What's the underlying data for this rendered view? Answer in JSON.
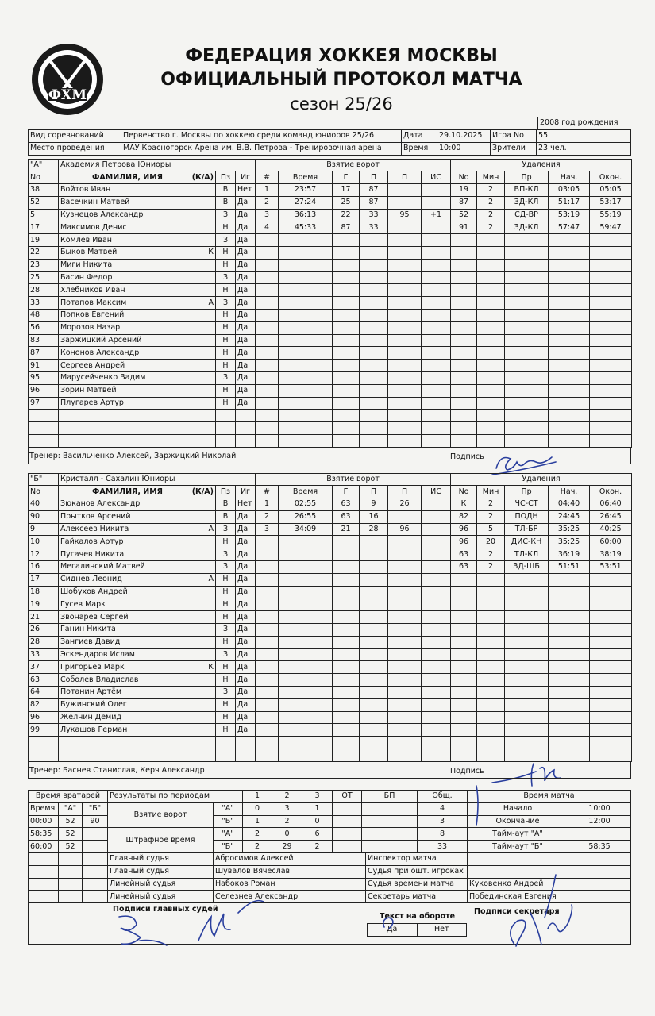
{
  "header": {
    "logo_text": "ФХМ",
    "title1": "ФЕДЕРАЦИЯ ХОККЕЯ МОСКВЫ",
    "title2": "ОФИЦИАЛЬНЫЙ ПРОТОКОЛ МАТЧА",
    "season": "сезон 25/26",
    "birth_year": "2008 год рождения"
  },
  "info": {
    "competition_label": "Вид соревнований",
    "competition": "Первенство г. Москвы по хоккею среди команд юниоров 25/26",
    "date_label": "Дата",
    "date": "29.10.2025",
    "game_label": "Игра No",
    "game": "55",
    "venue_label": "Место проведения",
    "venue": "МАУ Красногорск Арена им. В.В. Петрова - Тренировочная арена",
    "time_label": "Время",
    "time": "10:00",
    "spectators_label": "Зрители",
    "spectators": "23 чел."
  },
  "columns": {
    "no": "No",
    "name": "ФАМИЛИЯ, ИМЯ",
    "role": "(К/А)",
    "pos": "Пз",
    "plays": "Иг",
    "goals_title": "Взятие ворот",
    "n": "#",
    "time": "Время",
    "g": "Г",
    "a1": "П",
    "a2": "П",
    "sit": "ИС",
    "pen_title": "Удаления",
    "pno": "No",
    "min": "Мин",
    "code": "Пр",
    "start": "Нач.",
    "end": "Окон."
  },
  "teams": [
    {
      "label": "\"А\"",
      "name": "Академия Петрова Юниоры",
      "players": [
        {
          "no": "38",
          "name": "Войтов Иван",
          "role": "",
          "pos": "В",
          "plays": "Нет"
        },
        {
          "no": "52",
          "name": "Васечкин Матвей",
          "role": "",
          "pos": "В",
          "plays": "Да"
        },
        {
          "no": "5",
          "name": "Кузнецов Александр",
          "role": "",
          "pos": "З",
          "plays": "Да"
        },
        {
          "no": "17",
          "name": "Максимов Денис",
          "role": "",
          "pos": "Н",
          "plays": "Да"
        },
        {
          "no": "19",
          "name": "Комлев Иван",
          "role": "",
          "pos": "З",
          "plays": "Да"
        },
        {
          "no": "22",
          "name": "Быков Матвей",
          "role": "К",
          "pos": "Н",
          "plays": "Да"
        },
        {
          "no": "23",
          "name": "Миги Никита",
          "role": "",
          "pos": "Н",
          "plays": "Да"
        },
        {
          "no": "25",
          "name": "Басин Федор",
          "role": "",
          "pos": "З",
          "plays": "Да"
        },
        {
          "no": "28",
          "name": "Хлебников Иван",
          "role": "",
          "pos": "Н",
          "plays": "Да"
        },
        {
          "no": "33",
          "name": "Потапов Максим",
          "role": "А",
          "pos": "З",
          "plays": "Да"
        },
        {
          "no": "48",
          "name": "Попков Евгений",
          "role": "",
          "pos": "Н",
          "plays": "Да"
        },
        {
          "no": "56",
          "name": "Морозов Назар",
          "role": "",
          "pos": "Н",
          "plays": "Да"
        },
        {
          "no": "83",
          "name": "Заржицкий Арсений",
          "role": "",
          "pos": "Н",
          "plays": "Да"
        },
        {
          "no": "87",
          "name": "Кононов Александр",
          "role": "",
          "pos": "Н",
          "plays": "Да"
        },
        {
          "no": "91",
          "name": "Сергеев Андрей",
          "role": "",
          "pos": "Н",
          "plays": "Да"
        },
        {
          "no": "95",
          "name": "Марусейченко Вадим",
          "role": "",
          "pos": "З",
          "plays": "Да"
        },
        {
          "no": "96",
          "name": "Зорин Матвей",
          "role": "",
          "pos": "Н",
          "plays": "Да"
        },
        {
          "no": "97",
          "name": "Плугарев Артур",
          "role": "",
          "pos": "Н",
          "plays": "Да"
        }
      ],
      "goals": [
        {
          "n": "1",
          "time": "23:57",
          "g": "17",
          "a1": "87",
          "a2": "",
          "sit": ""
        },
        {
          "n": "2",
          "time": "27:24",
          "g": "25",
          "a1": "87",
          "a2": "",
          "sit": ""
        },
        {
          "n": "3",
          "time": "36:13",
          "g": "22",
          "a1": "33",
          "a2": "95",
          "sit": "+1"
        },
        {
          "n": "4",
          "time": "45:33",
          "g": "87",
          "a1": "33",
          "a2": "",
          "sit": ""
        }
      ],
      "penalties": [
        {
          "no": "19",
          "min": "2",
          "code": "ВП-КЛ",
          "start": "03:05",
          "end": "05:05"
        },
        {
          "no": "87",
          "min": "2",
          "code": "ЗД-КЛ",
          "start": "51:17",
          "end": "53:17"
        },
        {
          "no": "52",
          "min": "2",
          "code": "СД-ВР",
          "start": "53:19",
          "end": "55:19"
        },
        {
          "no": "91",
          "min": "2",
          "code": "ЗД-КЛ",
          "start": "57:47",
          "end": "59:47"
        }
      ],
      "coach": "Тренер: Васильченко Алексей, Заржицкий Николай",
      "signature_label": "Подпись"
    },
    {
      "label": "\"Б\"",
      "name": "Кристалл - Сахалин Юниоры",
      "players": [
        {
          "no": "40",
          "name": "Зюканов Александр",
          "role": "",
          "pos": "В",
          "plays": "Нет"
        },
        {
          "no": "90",
          "name": "Прытков Арсений",
          "role": "",
          "pos": "В",
          "plays": "Да"
        },
        {
          "no": "9",
          "name": "Алексеев Никита",
          "role": "А",
          "pos": "З",
          "plays": "Да"
        },
        {
          "no": "10",
          "name": "Гайкалов Артур",
          "role": "",
          "pos": "Н",
          "plays": "Да"
        },
        {
          "no": "12",
          "name": "Пугачев Никита",
          "role": "",
          "pos": "З",
          "plays": "Да"
        },
        {
          "no": "16",
          "name": "Мегалинский Матвей",
          "role": "",
          "pos": "З",
          "plays": "Да"
        },
        {
          "no": "17",
          "name": "Сиднев Леонид",
          "role": "А",
          "pos": "Н",
          "plays": "Да"
        },
        {
          "no": "18",
          "name": "Шобухов Андрей",
          "role": "",
          "pos": "Н",
          "plays": "Да"
        },
        {
          "no": "19",
          "name": "Гусев Марк",
          "role": "",
          "pos": "Н",
          "plays": "Да"
        },
        {
          "no": "21",
          "name": "Звонарев Сергей",
          "role": "",
          "pos": "Н",
          "plays": "Да"
        },
        {
          "no": "26",
          "name": "Ганин Никита",
          "role": "",
          "pos": "З",
          "plays": "Да"
        },
        {
          "no": "28",
          "name": "Зангиев Давид",
          "role": "",
          "pos": "Н",
          "plays": "Да"
        },
        {
          "no": "33",
          "name": "Эскендаров Ислам",
          "role": "",
          "pos": "З",
          "plays": "Да"
        },
        {
          "no": "37",
          "name": "Григорьев Марк",
          "role": "К",
          "pos": "Н",
          "plays": "Да"
        },
        {
          "no": "63",
          "name": "Соболев Владислав",
          "role": "",
          "pos": "Н",
          "plays": "Да"
        },
        {
          "no": "64",
          "name": "Потанин Артём",
          "role": "",
          "pos": "З",
          "plays": "Да"
        },
        {
          "no": "82",
          "name": "Бужинский Олег",
          "role": "",
          "pos": "Н",
          "plays": "Да"
        },
        {
          "no": "96",
          "name": "Желнин Демид",
          "role": "",
          "pos": "Н",
          "plays": "Да"
        },
        {
          "no": "99",
          "name": "Лукашов Герман",
          "role": "",
          "pos": "Н",
          "plays": "Да"
        }
      ],
      "goals": [
        {
          "n": "1",
          "time": "02:55",
          "g": "63",
          "a1": "9",
          "a2": "26",
          "sit": ""
        },
        {
          "n": "2",
          "time": "26:55",
          "g": "63",
          "a1": "16",
          "a2": "",
          "sit": ""
        },
        {
          "n": "3",
          "time": "34:09",
          "g": "21",
          "a1": "28",
          "a2": "96",
          "sit": ""
        }
      ],
      "penalties": [
        {
          "no": "К",
          "min": "2",
          "code": "ЧС-СТ",
          "start": "04:40",
          "end": "06:40"
        },
        {
          "no": "82",
          "min": "2",
          "code": "ПОДН",
          "start": "24:45",
          "end": "26:45"
        },
        {
          "no": "96",
          "min": "5",
          "code": "ТЛ-БР",
          "start": "35:25",
          "end": "40:25"
        },
        {
          "no": "96",
          "min": "20",
          "code": "ДИС-КН",
          "start": "35:25",
          "end": "60:00"
        },
        {
          "no": "63",
          "min": "2",
          "code": "ТЛ-КЛ",
          "start": "36:19",
          "end": "38:19"
        },
        {
          "no": "63",
          "min": "2",
          "code": "ЗД-ШБ",
          "start": "51:51",
          "end": "53:51"
        }
      ],
      "coach": "Тренер: Баснев Станислав, Керч Александр",
      "signature_label": "Подпись"
    }
  ],
  "goalies": {
    "title": "Время вратарей",
    "h_time": "Время",
    "h_a": "\"А\"",
    "h_b": "\"Б\"",
    "rows": [
      {
        "time": "00:00",
        "a": "52",
        "b": "90"
      },
      {
        "time": "58:35",
        "a": "52",
        "b": ""
      },
      {
        "time": "60:00",
        "a": "52",
        "b": ""
      }
    ]
  },
  "periods": {
    "title": "Результаты по периодам",
    "h1": "1",
    "h2": "2",
    "h3": "3",
    "hot": "ОТ",
    "hbp": "БП",
    "htot": "Общ.",
    "goals_label": "Взятие ворот",
    "pim_label": "Штрафное время",
    "team_a": "\"А\"",
    "team_b": "\"Б\"",
    "goals_a": {
      "p1": "0",
      "p2": "3",
      "p3": "1",
      "ot": "",
      "bp": "",
      "total": "4"
    },
    "goals_b": {
      "p1": "1",
      "p2": "2",
      "p3": "0",
      "ot": "",
      "bp": "",
      "total": "3"
    },
    "pim_a": {
      "p1": "2",
      "p2": "0",
      "p3": "6",
      "ot": "",
      "bp": "",
      "total": "8"
    },
    "pim_b": {
      "p1": "2",
      "p2": "29",
      "p3": "2",
      "ot": "",
      "bp": "",
      "total": "33"
    }
  },
  "match_time": {
    "title": "Время матча",
    "start_label": "Начало",
    "start": "10:00",
    "end_label": "Окончание",
    "end": "12:00",
    "timeout_a_label": "Тайм-аут \"А\"",
    "timeout_a": "",
    "timeout_b_label": "Тайм-аут \"Б\"",
    "timeout_b": "58:35"
  },
  "officials": [
    {
      "role": "Главный судья",
      "name": "Абросимов Алексей",
      "role2": "Инспектор матча",
      "name2": ""
    },
    {
      "role": "Главный судья",
      "name": "Шувалов Вячеслав",
      "role2": "Судья при ошт. игроках",
      "name2": ""
    },
    {
      "role": "Линейный судья",
      "name": "Набоков Роман",
      "role2": "Судья времени матча",
      "name2": "Куковенко Андрей"
    },
    {
      "role": "Линейный судья",
      "name": "Селезнев Александр",
      "role2": "Секретарь матча",
      "name2": "Побединская Евгения"
    }
  ],
  "footer": {
    "ref_signatures": "Подписи главных судей",
    "reverse_text": "Текст на обороте",
    "yes": "Да",
    "no": "Нет",
    "secretary_signature": "Подписи секретаря"
  }
}
